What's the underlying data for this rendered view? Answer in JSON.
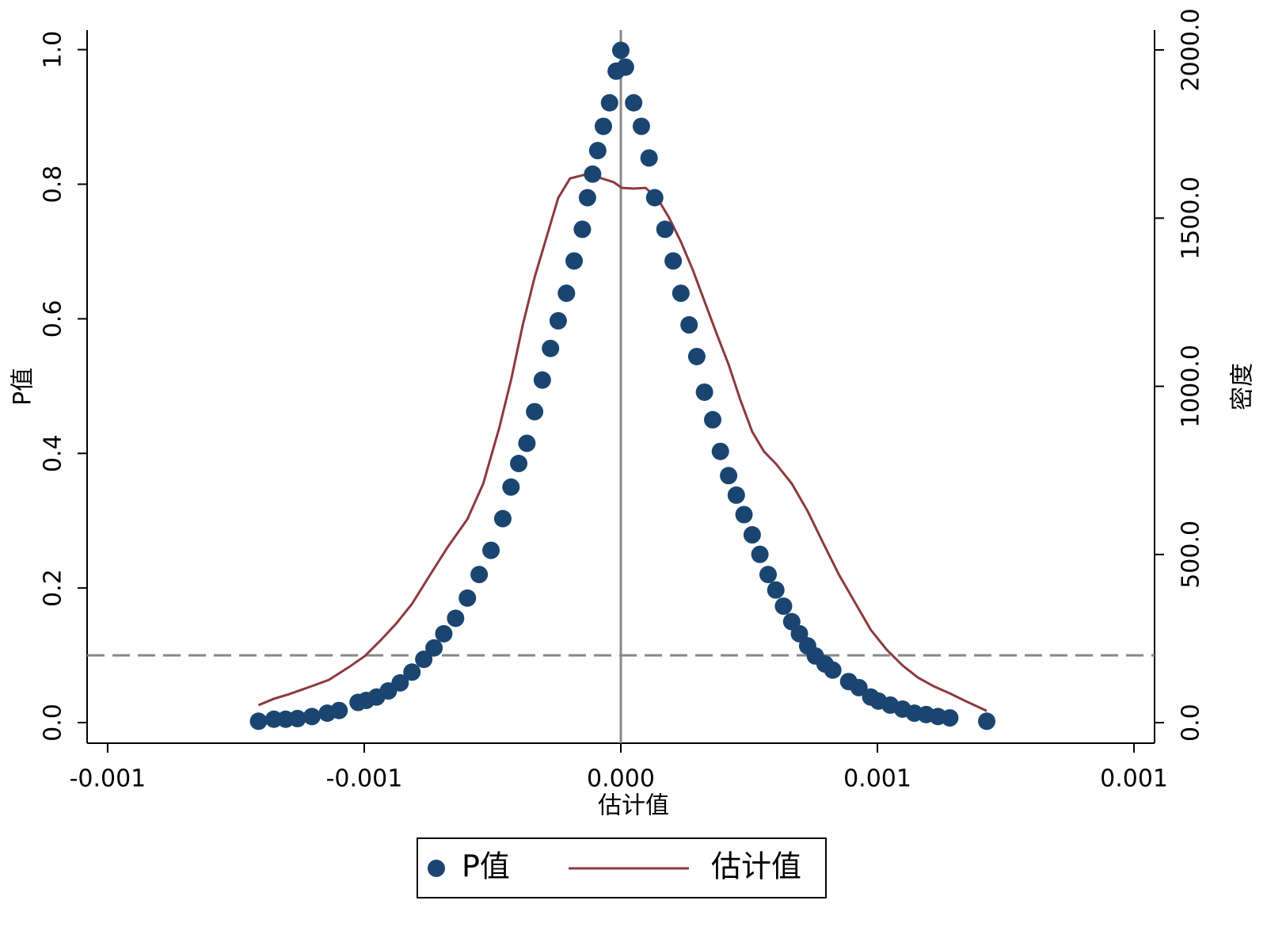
{
  "chart_data": {
    "type": "scatter",
    "x_label": "估计值",
    "y_label": "P值",
    "y2_label": "密度",
    "xlim": [
      -0.00104,
      0.00104
    ],
    "xticks": [
      -0.001,
      {
        "value": -0.0005,
        "label": "-0.001"
      },
      {
        "value": 0,
        "label": "0.000"
      },
      {
        "value": 0.0005,
        "label": "0.001"
      },
      0.001
    ],
    "ylim": [
      -0.0306,
      1.029
    ],
    "yticks": [
      {
        "value": 0,
        "label": "0.0"
      },
      0.2,
      0.4,
      0.6,
      0.8,
      {
        "value": 1,
        "label": "1.0"
      }
    ],
    "y2lim": [
      -61,
      2059
    ],
    "y2ticks": [
      {
        "value": 0,
        "label": "0.0"
      },
      {
        "value": 500,
        "label": "500.0"
      },
      {
        "value": 1000,
        "label": "1000.0"
      },
      {
        "value": 1500,
        "label": "1500.0"
      },
      {
        "value": 2000,
        "label": "2000.0"
      }
    ],
    "hlines": [
      0.1
    ],
    "vlines": [
      0
    ],
    "legend": "bottom",
    "series": [
      {
        "name": "P值",
        "type": "scatter",
        "color": "#1a4570",
        "x": [
          -0.000706,
          -0.000676,
          -0.000653,
          -0.00063,
          -0.000602,
          -0.000572,
          -0.000549,
          -0.000512,
          -0.000496,
          -0.000476,
          -0.000453,
          -0.00043,
          -0.000407,
          -0.000384,
          -0.000364,
          -0.000345,
          -0.000322,
          -0.000299,
          -0.000276,
          -0.000253,
          -0.00023,
          -0.000214,
          -0.000199,
          -0.000183,
          -0.000168,
          -0.000153,
          -0.000137,
          -0.000122,
          -0.000106,
          -9.1e-05,
          -7.5e-05,
          -6.5e-05,
          -5.5e-05,
          -4.5e-05,
          -3.4e-05,
          -2.2e-05,
          -9e-06,
          0,
          9e-06,
          2.5e-05,
          4e-05,
          5.5e-05,
          6.6e-05,
          8.6e-05,
          0.000102,
          0.000117,
          0.000133,
          0.000148,
          0.000163,
          0.000179,
          0.000194,
          0.00021,
          0.000225,
          0.00024,
          0.000256,
          0.000271,
          0.000287,
          0.000302,
          0.000317,
          0.000333,
          0.000348,
          0.000364,
          0.000379,
          0.000398,
          0.000413,
          0.000444,
          0.000464,
          0.000487,
          0.000502,
          0.000525,
          0.000549,
          0.000572,
          0.000595,
          0.000618,
          0.000641,
          0.000713
        ],
        "values": [
          0.002,
          0.005,
          0.005,
          0.006,
          0.009,
          0.014,
          0.018,
          0.03,
          0.033,
          0.038,
          0.047,
          0.059,
          0.075,
          0.094,
          0.111,
          0.132,
          0.155,
          0.185,
          0.22,
          0.256,
          0.303,
          0.35,
          0.385,
          0.415,
          0.462,
          0.509,
          0.556,
          0.597,
          0.638,
          0.686,
          0.733,
          0.78,
          0.815,
          0.85,
          0.886,
          0.921,
          0.968,
          0.999,
          0.974,
          0.921,
          0.886,
          0.839,
          0.78,
          0.733,
          0.686,
          0.638,
          0.591,
          0.544,
          0.491,
          0.45,
          0.403,
          0.367,
          0.338,
          0.309,
          0.279,
          0.25,
          0.22,
          0.197,
          0.173,
          0.15,
          0.132,
          0.114,
          0.099,
          0.087,
          0.078,
          0.061,
          0.052,
          0.038,
          0.032,
          0.026,
          0.02,
          0.014,
          0.012,
          0.009,
          0.007,
          0.002
        ]
      },
      {
        "name": "估计值",
        "type": "line",
        "axis": "y2",
        "color": "#8b3a3f",
        "x": [
          -0.000706,
          -0.000676,
          -0.000646,
          -0.000607,
          -0.000569,
          -0.00053,
          -0.000499,
          -0.000468,
          -0.000438,
          -0.000407,
          -0.000376,
          -0.000337,
          -0.000299,
          -0.000268,
          -0.000237,
          -0.000214,
          -0.000191,
          -0.000168,
          -0.000145,
          -0.000122,
          -9.9e-05,
          -6.8e-05,
          -3.7e-05,
          -1.4e-05,
          2e-06,
          2.5e-05,
          4.8e-05,
          7.1e-05,
          9.4e-05,
          0.000117,
          0.00014,
          0.000163,
          0.000186,
          0.00021,
          0.000233,
          0.000256,
          0.000279,
          0.000302,
          0.000333,
          0.000364,
          0.000394,
          0.000425,
          0.000456,
          0.000487,
          0.000518,
          0.000549,
          0.000579,
          0.00061,
          0.000641,
          0.000672,
          0.000713
        ],
        "values": [
          52,
          71,
          85,
          106,
          127,
          165,
          198,
          245,
          294,
          353,
          429,
          523,
          605,
          711,
          876,
          1018,
          1183,
          1324,
          1442,
          1560,
          1618,
          1630,
          1618,
          1607,
          1590,
          1588,
          1590,
          1560,
          1501,
          1430,
          1347,
          1253,
          1159,
          1065,
          959,
          865,
          806,
          770,
          711,
          629,
          535,
          440,
          358,
          276,
          217,
          170,
          134,
          108,
          87,
          64,
          35
        ]
      }
    ]
  }
}
